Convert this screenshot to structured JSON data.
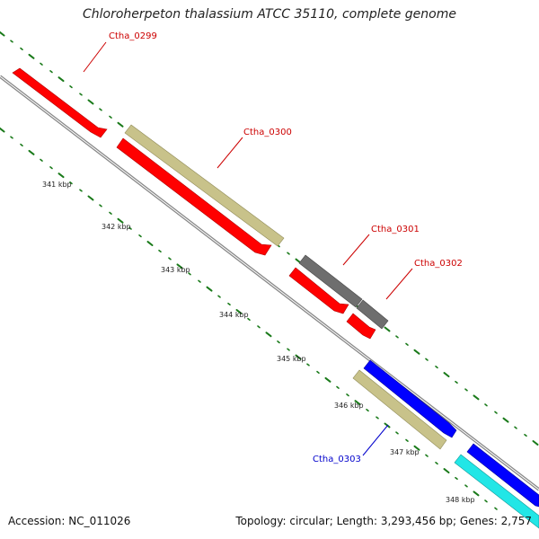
{
  "header": {
    "title": "Chloroherpeton thalassium ATCC 35110, complete genome"
  },
  "footer": {
    "accession": "Accession: NC_011026",
    "summary": "Topology: circular; Length: 3,293,456 bp; Genes: 2,757"
  },
  "colors": {
    "backbone": "#888888",
    "tick_major": "#1a7a1a",
    "gene_red": "#ff0000",
    "gene_khaki": "#c8c28a",
    "gene_gray": "#6e6e6e",
    "gene_blue": "#0000ff",
    "gene_cyan": "#22e6e6",
    "label_red": "#cc0000",
    "label_blue": "#0000cc"
  },
  "scale": {
    "ticks": [
      {
        "label": "341 kbp"
      },
      {
        "label": "342 kbp"
      },
      {
        "label": "343 kbp"
      },
      {
        "label": "344 kbp"
      },
      {
        "label": "345 kbp"
      },
      {
        "label": "346 kbp"
      },
      {
        "label": "347 kbp"
      },
      {
        "label": "348 kbp"
      }
    ]
  },
  "genes": [
    {
      "name": "Ctha_0299",
      "color": "red",
      "label_color": "red"
    },
    {
      "name": "Ctha_0300",
      "color": "red",
      "label_color": "red"
    },
    {
      "name": "",
      "color": "khaki"
    },
    {
      "name": "Ctha_0301",
      "color": "gray",
      "label_color": "red"
    },
    {
      "name": "",
      "color": "red"
    },
    {
      "name": "Ctha_0302",
      "color": "gray",
      "label_color": "red"
    },
    {
      "name": "",
      "color": "red"
    },
    {
      "name": "",
      "color": "blue"
    },
    {
      "name": "Ctha_0303",
      "color": "khaki",
      "label_color": "blue"
    },
    {
      "name": "",
      "color": "blue"
    },
    {
      "name": "",
      "color": "cyan"
    }
  ]
}
